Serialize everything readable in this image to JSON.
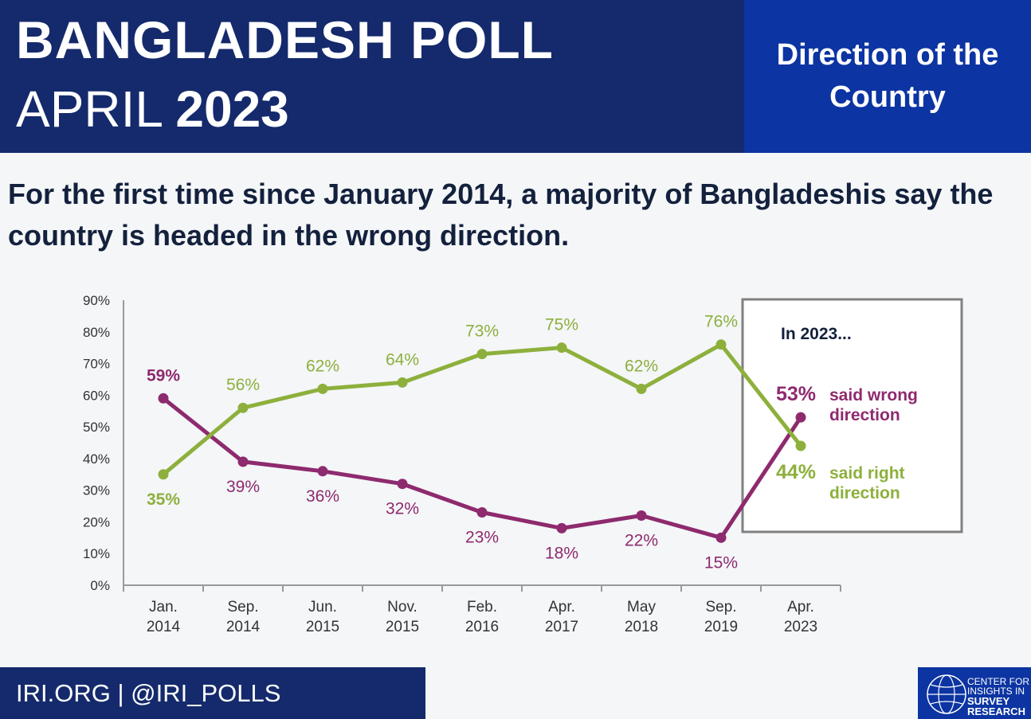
{
  "header": {
    "title_line1": "BANGLADESH POLL",
    "title_month": "APRIL",
    "title_year": "2023",
    "section": "Direction of the Country"
  },
  "headline": "For the first time since January 2014, a majority of Bangladeshis say the country is headed in the wrong direction.",
  "footer": {
    "text": "IRI.ORG | @IRI_POLLS",
    "logo_line1": "CENTER FOR INSIGHTS IN",
    "logo_line2": "SURVEY RESEARCH"
  },
  "callout": {
    "title": "In 2023...",
    "wrong_value": "53%",
    "wrong_label_1": "said wrong",
    "wrong_label_2": "direction",
    "right_value": "44%",
    "right_label_1": "said right",
    "right_label_2": "direction"
  },
  "chart_data": {
    "type": "line",
    "categories": [
      [
        "Jan.",
        "2014"
      ],
      [
        "Sep.",
        "2014"
      ],
      [
        "Jun.",
        "2015"
      ],
      [
        "Nov.",
        "2015"
      ],
      [
        "Feb.",
        "2016"
      ],
      [
        "Apr.",
        "2017"
      ],
      [
        "May",
        "2018"
      ],
      [
        "Sep.",
        "2019"
      ],
      [
        "Apr.",
        "2023"
      ]
    ],
    "ylim": [
      0,
      90
    ],
    "yticks": [
      "0%",
      "10%",
      "20%",
      "30%",
      "40%",
      "50%",
      "60%",
      "70%",
      "80%",
      "90%"
    ],
    "grid": false,
    "colors": {
      "wrong": "#8e2a6e",
      "right": "#8db03c"
    },
    "series": [
      {
        "name": "said wrong direction",
        "key": "wrong",
        "values": [
          59,
          39,
          36,
          32,
          23,
          18,
          22,
          15,
          53
        ]
      },
      {
        "name": "said right direction",
        "key": "right",
        "values": [
          35,
          56,
          62,
          64,
          73,
          75,
          62,
          76,
          44
        ]
      }
    ]
  }
}
